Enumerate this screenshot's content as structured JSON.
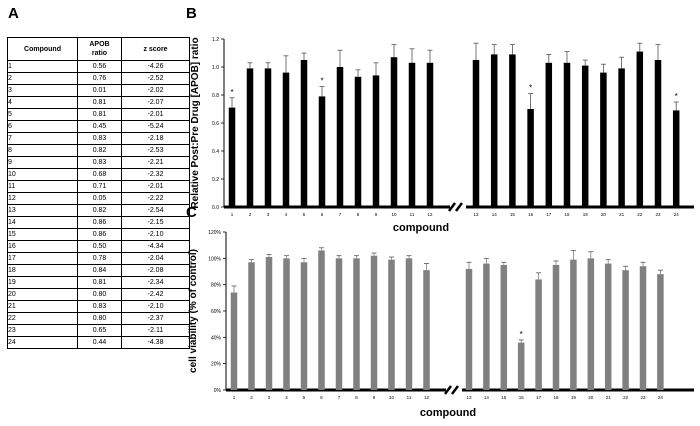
{
  "panels": {
    "a": "A",
    "b": "B",
    "c": "C"
  },
  "table": {
    "headers": [
      "Compound",
      "APOB\nratio",
      "z score"
    ],
    "rows": [
      [
        "1",
        "0.56",
        "-4.26"
      ],
      [
        "2",
        "0.76",
        "-2.52"
      ],
      [
        "3",
        "0.01",
        "-2.02"
      ],
      [
        "4",
        "0.81",
        "-2.07"
      ],
      [
        "5",
        "0.81",
        "-2.01"
      ],
      [
        "6",
        "0.45",
        "-5.24"
      ],
      [
        "7",
        "0.83",
        "-2.18"
      ],
      [
        "8",
        "0.82",
        "-2.53"
      ],
      [
        "9",
        "0.83",
        "-2.21"
      ],
      [
        "10",
        "0.68",
        "-2.32"
      ],
      [
        "11",
        "0.71",
        "-2.01"
      ],
      [
        "12",
        "0.05",
        "-2.22"
      ],
      [
        "13",
        "0.82",
        "-2.54"
      ],
      [
        "14",
        "0.86",
        "-2.15"
      ],
      [
        "15",
        "0.86",
        "-2.10"
      ],
      [
        "16",
        "0.50",
        "-4.34"
      ],
      [
        "17",
        "0.78",
        "-2.04"
      ],
      [
        "18",
        "0.84",
        "-2.08"
      ],
      [
        "19",
        "0.81",
        "-2.34"
      ],
      [
        "20",
        "0.80",
        "-2.42"
      ],
      [
        "21",
        "0.83",
        "-2.10"
      ],
      [
        "22",
        "0.80",
        "-2.37"
      ],
      [
        "23",
        "0.65",
        "-2.11"
      ],
      [
        "24",
        "0.44",
        "-4.38"
      ]
    ]
  },
  "chart_data": [
    {
      "type": "bar",
      "title": "",
      "ylabel": "Relative Post:Pre Drug [APOB] ratio",
      "xlabel": "compound",
      "ylim": [
        0,
        1.2
      ],
      "yticks": [
        "0.0",
        "0.2",
        "0.4",
        "0.6",
        "0.8",
        "1.0",
        "1.2"
      ],
      "categories": [
        "1",
        "2",
        "3",
        "4",
        "5",
        "6",
        "7",
        "8",
        "9",
        "10",
        "11",
        "12",
        "13",
        "14",
        "15",
        "16",
        "17",
        "18",
        "19",
        "20",
        "21",
        "22",
        "23",
        "24"
      ],
      "values": [
        0.71,
        0.99,
        0.99,
        0.96,
        1.05,
        0.79,
        1.0,
        0.93,
        0.94,
        1.07,
        1.03,
        1.03,
        1.05,
        1.09,
        1.09,
        0.7,
        1.03,
        1.03,
        1.01,
        0.96,
        0.99,
        1.11,
        1.05,
        0.69
      ],
      "errors": [
        0.07,
        0.04,
        0.04,
        0.12,
        0.05,
        0.07,
        0.12,
        0.05,
        0.09,
        0.09,
        0.1,
        0.09,
        0.12,
        0.07,
        0.07,
        0.11,
        0.06,
        0.08,
        0.04,
        0.06,
        0.08,
        0.06,
        0.11,
        0.06
      ],
      "significant": [
        "1",
        "6",
        "16",
        "24"
      ],
      "star_label": "*",
      "color": "#000000"
    },
    {
      "type": "bar",
      "title": "",
      "ylabel": "cell viability (% of control)",
      "xlabel": "compound",
      "ylim": [
        0,
        120
      ],
      "yticks": [
        "0%",
        "20%",
        "40%",
        "60%",
        "80%",
        "100%",
        "120%"
      ],
      "categories": [
        "1",
        "2",
        "3",
        "4",
        "5",
        "6",
        "7",
        "8",
        "9",
        "10",
        "11",
        "12",
        "13",
        "14",
        "15",
        "16",
        "17",
        "18",
        "19",
        "20",
        "21",
        "22",
        "23",
        "24"
      ],
      "values": [
        74,
        97,
        101,
        100,
        97,
        106,
        100,
        100,
        102,
        99,
        100,
        91,
        92,
        96,
        95,
        36,
        84,
        95,
        99,
        100,
        96,
        91,
        94,
        88
      ],
      "errors": [
        5,
        2,
        2,
        2,
        3,
        2,
        2,
        2,
        2,
        2,
        2,
        5,
        5,
        4,
        2,
        2,
        5,
        3,
        7,
        5,
        3,
        3,
        3,
        3
      ],
      "significant": [
        "16"
      ],
      "star_label": "*",
      "color": "#808080"
    }
  ]
}
